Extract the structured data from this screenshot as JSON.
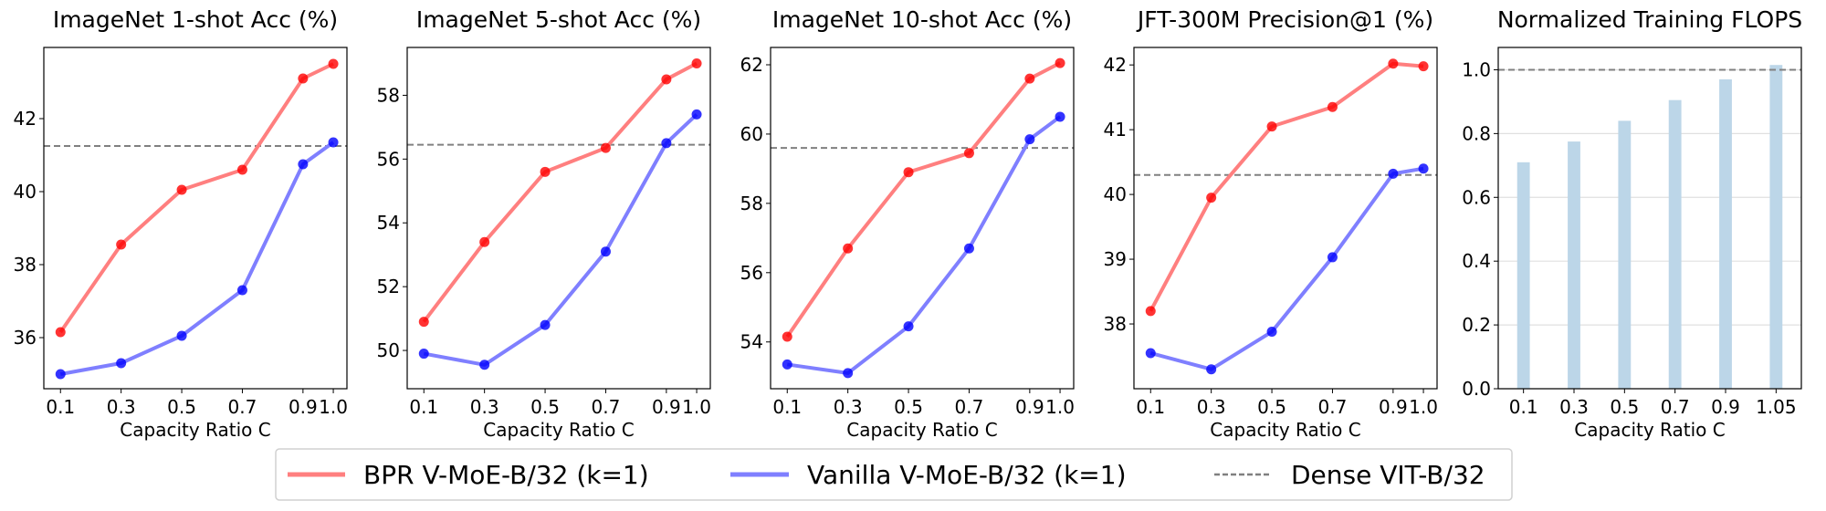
{
  "chart_data": [
    {
      "type": "line",
      "title": "ImageNet 1-shot Acc (%)",
      "xlabel": "Capacity Ratio C",
      "categories": [
        "0.1",
        "0.3",
        "0.5",
        "0.7",
        "0.9",
        "1.0"
      ],
      "series": [
        {
          "name": "BPR V-MoE-B/32 (k=1)",
          "values": [
            36.15,
            38.55,
            40.05,
            40.6,
            43.1,
            43.5
          ]
        },
        {
          "name": "Vanilla V-MoE-B/32 (k=1)",
          "values": [
            35.0,
            35.3,
            36.05,
            37.3,
            40.75,
            41.35
          ]
        }
      ],
      "reference": {
        "name": "Dense VIT-B/32",
        "value": 41.25
      },
      "ylim": [
        34.6,
        43.95
      ],
      "yticks": [
        36,
        38,
        40,
        42
      ],
      "grid": false
    },
    {
      "type": "line",
      "title": "ImageNet 5-shot Acc (%)",
      "xlabel": "Capacity Ratio C",
      "categories": [
        "0.1",
        "0.3",
        "0.5",
        "0.7",
        "0.9",
        "1.0"
      ],
      "series": [
        {
          "name": "BPR V-MoE-B/32 (k=1)",
          "values": [
            50.9,
            53.4,
            55.6,
            56.35,
            58.5,
            59.0
          ]
        },
        {
          "name": "Vanilla V-MoE-B/32 (k=1)",
          "values": [
            49.9,
            49.55,
            50.8,
            53.1,
            56.5,
            57.4
          ]
        }
      ],
      "reference": {
        "name": "Dense VIT-B/32",
        "value": 56.45
      },
      "ylim": [
        48.8,
        59.5
      ],
      "yticks": [
        50,
        52,
        54,
        56,
        58
      ],
      "grid": false
    },
    {
      "type": "line",
      "title": "ImageNet 10-shot Acc (%)",
      "xlabel": "Capacity Ratio C",
      "categories": [
        "0.1",
        "0.3",
        "0.5",
        "0.7",
        "0.9",
        "1.0"
      ],
      "series": [
        {
          "name": "BPR V-MoE-B/32 (k=1)",
          "values": [
            54.15,
            56.7,
            58.9,
            59.45,
            61.6,
            62.05
          ]
        },
        {
          "name": "Vanilla V-MoE-B/32 (k=1)",
          "values": [
            53.35,
            53.1,
            54.45,
            56.7,
            59.85,
            60.5
          ]
        }
      ],
      "reference": {
        "name": "Dense VIT-B/32",
        "value": 59.6
      },
      "ylim": [
        52.65,
        62.5
      ],
      "yticks": [
        54,
        56,
        58,
        60,
        62
      ],
      "grid": false
    },
    {
      "type": "line",
      "title": "JFT-300M Precision@1 (%)",
      "xlabel": "Capacity Ratio C",
      "categories": [
        "0.1",
        "0.3",
        "0.5",
        "0.7",
        "0.9",
        "1.0"
      ],
      "series": [
        {
          "name": "BPR V-MoE-B/32 (k=1)",
          "values": [
            38.2,
            39.95,
            41.05,
            41.35,
            42.02,
            41.98
          ]
        },
        {
          "name": "Vanilla V-MoE-B/32 (k=1)",
          "values": [
            37.55,
            37.3,
            37.88,
            39.03,
            40.32,
            40.4
          ]
        }
      ],
      "reference": {
        "name": "Dense VIT-B/32",
        "value": 40.3
      },
      "ylim": [
        37.0,
        42.27
      ],
      "yticks": [
        38,
        39,
        40,
        41,
        42
      ],
      "grid": false
    },
    {
      "type": "bar",
      "title": "Normalized Training FLOPS",
      "xlabel": "Capacity Ratio C",
      "categories": [
        "0.1",
        "0.3",
        "0.5",
        "0.7",
        "0.9",
        "1.05"
      ],
      "values": [
        0.71,
        0.775,
        0.84,
        0.905,
        0.97,
        1.015
      ],
      "reference": {
        "name": "Dense VIT-B/32",
        "value": 1.0
      },
      "ylim": [
        0,
        1.07
      ],
      "yticks": [
        "0.0",
        "0.2",
        "0.4",
        "0.6",
        "0.8",
        "1.0"
      ],
      "grid": true
    }
  ],
  "legend": {
    "placement": "bottom-center",
    "entries": [
      {
        "label": "BPR V-MoE-B/32 (k=1)",
        "style": "line",
        "color": "#ff7f7f"
      },
      {
        "label": "Vanilla V-MoE-B/32 (k=1)",
        "style": "line",
        "color": "#7f7fff"
      },
      {
        "label": "Dense VIT-B/32",
        "style": "dashed",
        "color": "#808080"
      }
    ]
  },
  "colors": {
    "bpr_line": "#ff7f7f",
    "bpr_marker": "#ff0000",
    "vanilla_line": "#7f7fff",
    "vanilla_marker": "#0000ff",
    "dense": "#808080",
    "bar": "#bcd6e8",
    "grid": "#e0e0e0"
  }
}
